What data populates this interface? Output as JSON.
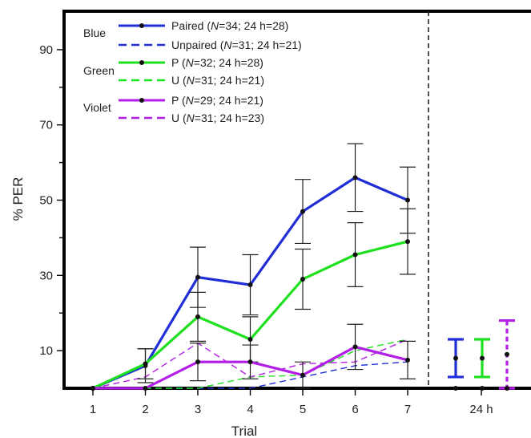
{
  "chart_data": {
    "type": "line",
    "title": "",
    "xlabel": "Trial",
    "ylabel": "% PER",
    "x": [
      1,
      2,
      3,
      4,
      5,
      6,
      7
    ],
    "x_ticks": [
      "1",
      "2",
      "3",
      "4",
      "5",
      "6",
      "7"
    ],
    "x_extra_label": "24 h",
    "ylim": [
      0,
      100
    ],
    "y_ticks": [
      10,
      30,
      50,
      70,
      90
    ],
    "grid": false,
    "legend_placement": "top-left",
    "legend_groups": [
      {
        "label": "Blue",
        "entries": [
          0,
          1
        ]
      },
      {
        "label": "Green",
        "entries": [
          2,
          3
        ]
      },
      {
        "label": "Violet",
        "entries": [
          4,
          5
        ]
      }
    ],
    "series": [
      {
        "legend_prefix": "Paired (",
        "legend_n": "N",
        "legend_suffix": "=34; 24 h=28)",
        "color": "#1f2ed6",
        "dash": false,
        "width": 3.2,
        "values": [
          0,
          6,
          29.5,
          27.5,
          47,
          56,
          50
        ],
        "err": [
          0,
          4.5,
          8,
          8,
          8.5,
          9,
          8.8
        ],
        "value_24h": 8,
        "err_24h": 5
      },
      {
        "legend_prefix": "Unpaired (",
        "legend_n": "N",
        "legend_suffix": "=31; 24 h=21)",
        "color": "#1f2ed6",
        "dash": true,
        "width": 1.4,
        "values": [
          0,
          0,
          0,
          0,
          3,
          6,
          7
        ],
        "err": [],
        "value_24h": 0
      },
      {
        "legend_prefix": "P (",
        "legend_n": "N",
        "legend_suffix": "=32; 24 h=28)",
        "color": "#1ee01e",
        "dash": false,
        "width": 3.2,
        "values": [
          0,
          6.5,
          19,
          13,
          29,
          35.5,
          39
        ],
        "err": [
          0,
          4,
          6.5,
          6,
          8,
          8.5,
          8.7
        ],
        "value_24h": 8,
        "err_24h": 5
      },
      {
        "legend_prefix": "U (",
        "legend_n": "N",
        "legend_suffix": "=31; 24 h=21)",
        "color": "#1ee01e",
        "dash": true,
        "width": 1.4,
        "values": [
          0,
          0,
          0,
          3,
          3.5,
          10,
          13
        ],
        "err": [],
        "value_24h": 0
      },
      {
        "legend_prefix": "P (",
        "legend_n": "N",
        "legend_suffix": "=29; 24 h=21)",
        "color": "#b21ee6",
        "dash": false,
        "width": 3.2,
        "values": [
          0,
          0,
          7,
          7,
          3.5,
          11,
          7.5
        ],
        "err": [
          0,
          0,
          5,
          4.5,
          3.5,
          6,
          5
        ],
        "value_24h": 0,
        "err_24h": 0
      },
      {
        "legend_prefix": "U (",
        "legend_n": "N",
        "legend_suffix": "=31; 24 h=23)",
        "color": "#b21ee6",
        "dash": true,
        "width": 1.4,
        "values": [
          0,
          3,
          12,
          3,
          6.5,
          7,
          13
        ],
        "err": [],
        "value_24h": 9,
        "err_24h": 9
      }
    ]
  }
}
